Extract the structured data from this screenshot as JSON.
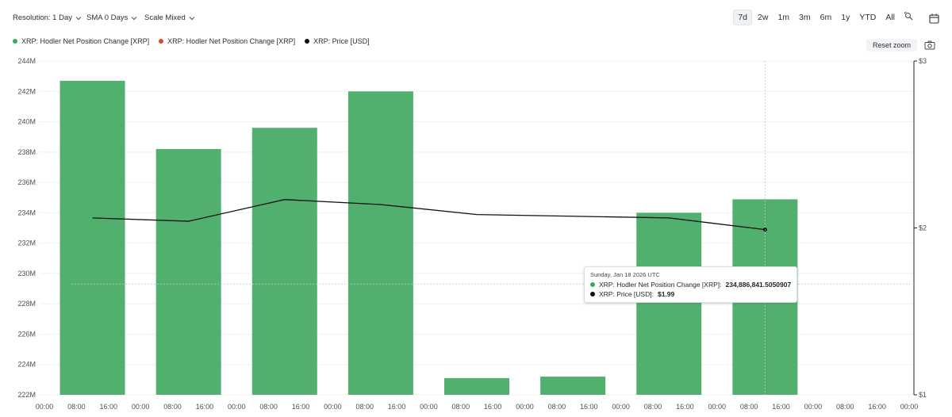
{
  "toolbar": {
    "resolution": "Resolution: 1 Day",
    "sma": "SMA 0 Days",
    "scale": "Scale Mixed",
    "ranges": [
      "7d",
      "2w",
      "1m",
      "3m",
      "6m",
      "1y",
      "YTD",
      "All"
    ],
    "active_range": "7d",
    "reset_zoom": "Reset zoom"
  },
  "legend": [
    {
      "label": "XRP: Hodler Net Position Change [XRP]",
      "color": "#3aa866"
    },
    {
      "label": "XRP: Hodler Net Position Change [XRP]",
      "color": "#e0452e"
    },
    {
      "label": "XRP: Price [USD]",
      "color": "#111111"
    }
  ],
  "tooltip": {
    "date": "Sunday, Jan 18 2026 UTC",
    "row1_label": "XRP: Hodler Net Position Change [XRP]:",
    "row1_value": "234,886,841.5050907",
    "row2_label": "XRP: Price [USD]:",
    "row2_value": "$1.99"
  },
  "chart_data": {
    "type": "bar",
    "x_tick_labels": [
      "00:00",
      "08:00",
      "16:00",
      "00:00",
      "08:00",
      "16:00",
      "00:00",
      "08:00",
      "16:00",
      "00:00",
      "08:00",
      "16:00",
      "00:00",
      "08:00",
      "16:00",
      "00:00",
      "08:00",
      "16:00",
      "00:00",
      "08:00",
      "16:00",
      "00:00",
      "08:00",
      "16:00",
      "00:00",
      "08:00",
      "16:00",
      "00:00"
    ],
    "y_left": {
      "ticks": [
        "222M",
        "224M",
        "226M",
        "228M",
        "230M",
        "232M",
        "234M",
        "236M",
        "238M",
        "240M",
        "242M",
        "244M"
      ],
      "range": [
        222000000,
        244000000
      ]
    },
    "y_right": {
      "ticks": [
        "$1",
        "$2",
        "$3"
      ],
      "range": [
        1,
        3
      ]
    },
    "series": [
      {
        "name": "XRP: Hodler Net Position Change [XRP]",
        "type": "bar",
        "color": "#52b06f",
        "values": [
          242700000,
          238200000,
          239600000,
          242000000,
          223100000,
          223200000,
          234000000,
          234886841.5050907
        ]
      },
      {
        "name": "XRP: Price [USD]",
        "type": "line",
        "color": "#111111",
        "values": [
          2.06,
          2.04,
          2.17,
          2.14,
          2.08,
          2.07,
          2.06,
          1.99
        ]
      }
    ],
    "grid": true
  }
}
